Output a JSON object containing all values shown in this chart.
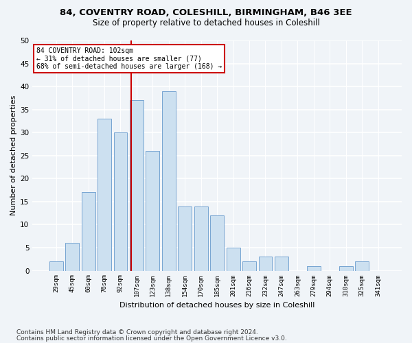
{
  "title_line1": "84, COVENTRY ROAD, COLESHILL, BIRMINGHAM, B46 3EE",
  "title_line2": "Size of property relative to detached houses in Coleshill",
  "xlabel": "Distribution of detached houses by size in Coleshill",
  "ylabel": "Number of detached properties",
  "footnote1": "Contains HM Land Registry data © Crown copyright and database right 2024.",
  "footnote2": "Contains public sector information licensed under the Open Government Licence v3.0.",
  "bar_labels": [
    "29sqm",
    "45sqm",
    "60sqm",
    "76sqm",
    "92sqm",
    "107sqm",
    "123sqm",
    "138sqm",
    "154sqm",
    "170sqm",
    "185sqm",
    "201sqm",
    "216sqm",
    "232sqm",
    "247sqm",
    "263sqm",
    "279sqm",
    "294sqm",
    "310sqm",
    "325sqm",
    "341sqm"
  ],
  "bar_values": [
    2,
    6,
    17,
    33,
    30,
    37,
    26,
    39,
    14,
    14,
    12,
    5,
    2,
    3,
    3,
    0,
    1,
    0,
    1,
    2,
    0
  ],
  "bar_color": "#cce0f0",
  "bar_edge_color": "#6699cc",
  "vline_color": "#cc0000",
  "annotation_text": "84 COVENTRY ROAD: 102sqm\n← 31% of detached houses are smaller (77)\n68% of semi-detached houses are larger (168) →",
  "annotation_box_color": "white",
  "annotation_box_edge": "#cc0000",
  "ylim": [
    0,
    50
  ],
  "yticks": [
    0,
    5,
    10,
    15,
    20,
    25,
    30,
    35,
    40,
    45,
    50
  ],
  "bg_color": "#f0f4f8",
  "plot_bg_color": "#f0f4f8",
  "grid_color": "white",
  "title1_fontsize": 9.5,
  "title2_fontsize": 8.5,
  "xlabel_fontsize": 8,
  "ylabel_fontsize": 8,
  "footnote_fontsize": 6.5
}
